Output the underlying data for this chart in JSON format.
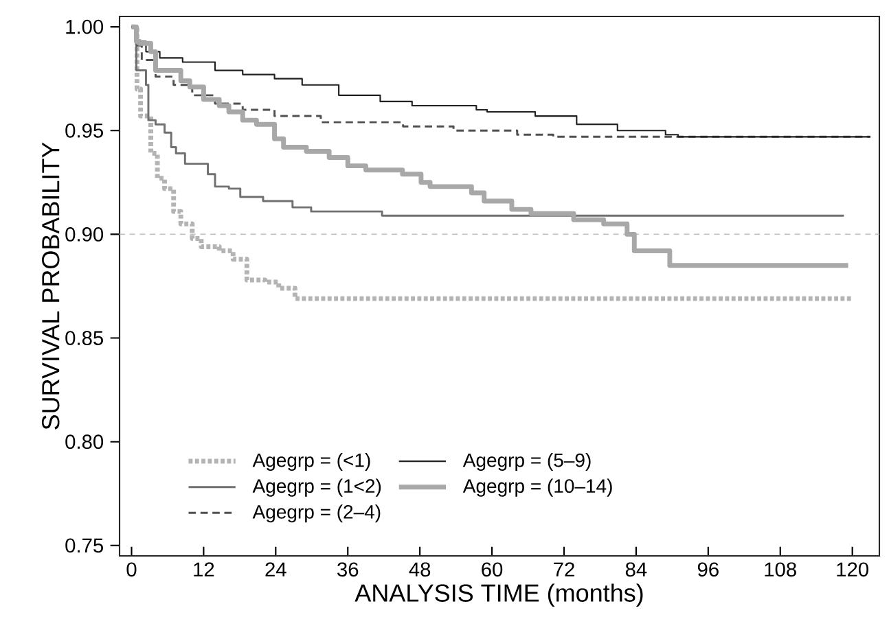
{
  "chart_data": {
    "type": "step",
    "xlabel": "ANALYSIS TIME (months)",
    "ylabel": "SURVIVAL PROBABILITY",
    "xlim": [
      -2,
      124.5
    ],
    "ylim": [
      0.745,
      1.005
    ],
    "xticks": [
      0,
      12,
      24,
      36,
      48,
      60,
      72,
      84,
      96,
      108,
      120
    ],
    "yticks": [
      0.75,
      {
        "value": 0.8,
        "label": "0.80"
      },
      0.85,
      {
        "value": 0.9,
        "label": "0.90"
      },
      0.95,
      {
        "value": 1.0,
        "label": "1.00"
      }
    ],
    "grid": false,
    "legend": "bottom left",
    "marker": "none",
    "ref_lines": [
      {
        "axis": "y",
        "value": 0.9,
        "color": "#c0c0c0",
        "line_style": "dashed"
      }
    ],
    "series": [
      {
        "name": "Agegrp = (<1)",
        "color": "#b4b4b4",
        "line_style": "dotted",
        "x": [
          0,
          0.9,
          1.5,
          3.2,
          4.3,
          5.5,
          7.0,
          8.2,
          10.1,
          11.6,
          14.6,
          16.9,
          19.2,
          22.2,
          24.5,
          27.2,
          120
        ],
        "values": [
          1.0,
          0.97,
          0.957,
          0.939,
          0.927,
          0.922,
          0.911,
          0.905,
          0.898,
          0.894,
          0.892,
          0.888,
          0.878,
          0.877,
          0.874,
          0.869,
          0.869
        ]
      },
      {
        "name": "Agegrp = (1<2)",
        "color": "#707070",
        "line_style": "solid",
        "x": [
          0,
          0.8,
          2.4,
          2.8,
          4.0,
          5.5,
          6.6,
          7.4,
          8.9,
          12.7,
          13.9,
          16.2,
          18.1,
          21.9,
          26.8,
          29.9,
          41.7,
          118.6
        ],
        "values": [
          1.0,
          0.979,
          0.972,
          0.955,
          0.953,
          0.949,
          0.942,
          0.939,
          0.934,
          0.929,
          0.923,
          0.922,
          0.918,
          0.916,
          0.913,
          0.911,
          0.909,
          0.909
        ]
      },
      {
        "name": "Agegrp = (2–4)",
        "color": "#505050",
        "line_style": "dashed",
        "x": [
          0,
          0.9,
          1.7,
          4.0,
          7.0,
          10.1,
          13.9,
          18.5,
          23.8,
          31.5,
          45.2,
          53.6,
          64.2,
          70.2,
          123
        ],
        "values": [
          1.0,
          0.991,
          0.984,
          0.976,
          0.972,
          0.967,
          0.963,
          0.96,
          0.957,
          0.954,
          0.952,
          0.95,
          0.948,
          0.947,
          0.947
        ]
      },
      {
        "name": "Agegrp = (5–9)",
        "color": "#202020",
        "line_style": "solid",
        "x": [
          0,
          0.9,
          2.4,
          4.7,
          8.5,
          13.9,
          18.5,
          23.8,
          28.4,
          34.5,
          41.4,
          46.7,
          57.4,
          59.2,
          67.2,
          74.1,
          80.9,
          88.9,
          91.0,
          123
        ],
        "values": [
          1.0,
          0.993,
          0.988,
          0.985,
          0.983,
          0.979,
          0.977,
          0.975,
          0.972,
          0.967,
          0.964,
          0.962,
          0.96,
          0.959,
          0.957,
          0.953,
          0.95,
          0.948,
          0.947,
          0.947
        ]
      },
      {
        "name": "Agegrp = (10–14)",
        "color": "#a8a8a8",
        "line_style": "solid",
        "x": [
          0,
          0.8,
          1.3,
          3.2,
          4.0,
          8.2,
          9.7,
          12.0,
          14.6,
          16.2,
          18.5,
          20.8,
          23.8,
          25.3,
          29.1,
          32.9,
          36.0,
          39.0,
          45.1,
          48.2,
          49.7,
          56.6,
          58.7,
          63.3,
          66.5,
          73.6,
          78.6,
          82.5,
          83.7,
          89.6,
          119.3
        ],
        "values": [
          1.0,
          0.993,
          0.992,
          0.988,
          0.979,
          0.974,
          0.971,
          0.965,
          0.962,
          0.959,
          0.955,
          0.953,
          0.946,
          0.942,
          0.94,
          0.937,
          0.933,
          0.931,
          0.929,
          0.925,
          0.923,
          0.92,
          0.916,
          0.912,
          0.91,
          0.907,
          0.905,
          0.9,
          0.892,
          0.885,
          0.885
        ]
      }
    ]
  }
}
